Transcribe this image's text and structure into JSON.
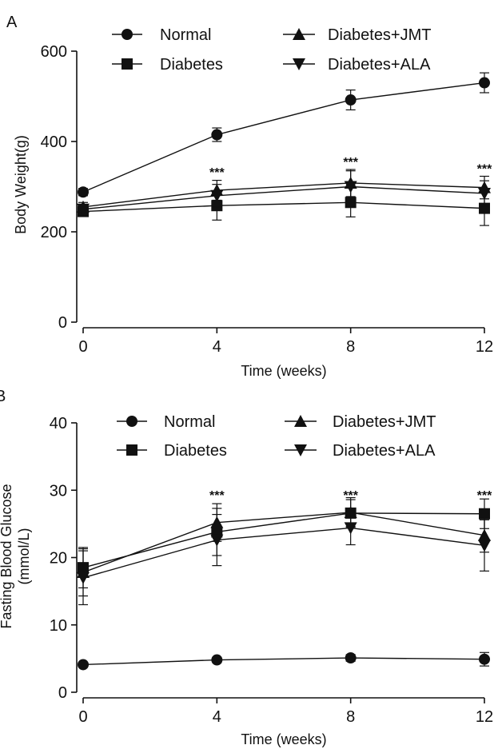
{
  "chart_data": [
    {
      "type": "line",
      "panel_label": "A",
      "xlabel": "Time (weeks)",
      "ylabel": "Body Weight(g)",
      "x": [
        0,
        4,
        8,
        12
      ],
      "xticks": [
        "0",
        "4",
        "8",
        "12"
      ],
      "yticks": [
        "0",
        "200",
        "400",
        "600"
      ],
      "xlim": [
        0,
        12
      ],
      "ylim": [
        0,
        600
      ],
      "legend_placement": "top",
      "series": [
        {
          "name": "Normal",
          "marker": "circle",
          "values": [
            288,
            415,
            492,
            530
          ],
          "errors": [
            8,
            15,
            22,
            22
          ]
        },
        {
          "name": "Diabetes",
          "marker": "square",
          "values": [
            245,
            258,
            265,
            252
          ],
          "errors": [
            10,
            32,
            32,
            38
          ]
        },
        {
          "name": "Diabetes+JMT",
          "marker": "triangle-up",
          "values": [
            255,
            292,
            308,
            298
          ],
          "errors": [
            10,
            22,
            30,
            25
          ]
        },
        {
          "name": "Diabetes+ALA",
          "marker": "triangle-down",
          "values": [
            250,
            280,
            300,
            285
          ],
          "errors": [
            10,
            25,
            35,
            28
          ]
        }
      ],
      "annotations": [
        {
          "x": 4,
          "y": 322,
          "text": "***"
        },
        {
          "x": 8,
          "y": 345,
          "text": "***"
        },
        {
          "x": 12,
          "y": 330,
          "text": "***"
        }
      ]
    },
    {
      "type": "line",
      "panel_label": "B",
      "xlabel": "Time (weeks)",
      "ylabel_lines": [
        "Fasting Blood Glucose",
        "(mmol/L)"
      ],
      "x": [
        0,
        4,
        8,
        12
      ],
      "xticks": [
        "0",
        "4",
        "8",
        "12"
      ],
      "yticks": [
        "0",
        "10",
        "20",
        "30",
        "40"
      ],
      "xlim": [
        0,
        12
      ],
      "ylim": [
        0,
        40
      ],
      "legend_placement": "top",
      "series": [
        {
          "name": "Normal",
          "marker": "circle",
          "values": [
            4.1,
            4.8,
            5.1,
            4.9
          ],
          "errors": [
            0.3,
            0.4,
            0.5,
            1.0
          ]
        },
        {
          "name": "Diabetes",
          "marker": "square",
          "values": [
            18.5,
            23.8,
            26.6,
            26.5
          ],
          "errors": [
            3,
            3.5,
            2,
            2.2
          ]
        },
        {
          "name": "Diabetes+JMT",
          "marker": "triangle-up",
          "values": [
            17.8,
            25.2,
            26.7,
            23.3
          ],
          "errors": [
            3.5,
            2.8,
            2.2,
            2.5
          ]
        },
        {
          "name": "Diabetes+ALA",
          "marker": "triangle-down",
          "values": [
            17.0,
            22.6,
            24.4,
            21.8
          ],
          "errors": [
            4,
            3.8,
            2.5,
            3.8
          ]
        }
      ],
      "annotations": [
        {
          "x": 4,
          "y": 28.6,
          "text": "***"
        },
        {
          "x": 8,
          "y": 28.6,
          "text": "***"
        },
        {
          "x": 12,
          "y": 28.6,
          "text": "***"
        }
      ]
    }
  ]
}
